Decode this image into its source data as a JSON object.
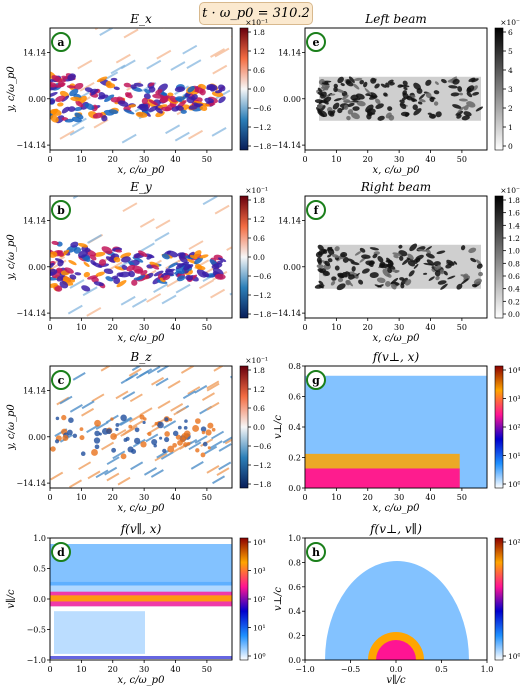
{
  "header": "t · ω_p0 = 310.2",
  "colors": {
    "diverging": [
      "#081d58",
      "#2c7fb8",
      "#f7f7f7",
      "#f46d43",
      "#67000d"
    ],
    "grey": [
      "#ffffff",
      "#000000"
    ],
    "lognorm": [
      "#ffffff",
      "#1e90ff",
      "#0000cd",
      "#ff1493",
      "#ffa500",
      "#8b0000"
    ]
  },
  "chart_data": [
    {
      "type": "heatmap",
      "letter": "a",
      "title": "E_x",
      "xlabel": "x, c/ω_p0",
      "ylabel": "y, c/ω_p0",
      "xticks": [
        0,
        10,
        20,
        30,
        40,
        50
      ],
      "yticks": [
        "14.14",
        "0.00",
        "−14.14"
      ],
      "colorbar": {
        "ticks": [
          "1.8",
          "1.2",
          "0.6",
          "0.0",
          "−0.6",
          "−1.2",
          "−1.8"
        ],
        "exponent": "×10⁻¹"
      }
    },
    {
      "type": "heatmap",
      "letter": "b",
      "title": "E_y",
      "xlabel": "x, c/ω_p0",
      "ylabel": "y, c/ω_p0",
      "xticks": [
        0,
        10,
        20,
        30,
        40,
        50
      ],
      "yticks": [
        "14.14",
        "0.00",
        "−14.14"
      ],
      "colorbar": {
        "ticks": [
          "1.8",
          "1.2",
          "0.6",
          "0.0",
          "−0.6",
          "−1.2",
          "−1.8"
        ],
        "exponent": "×10⁻¹"
      }
    },
    {
      "type": "heatmap",
      "letter": "c",
      "title": "B_z",
      "xlabel": "x, c/ω_p0",
      "ylabel": "y, c/ω_p0",
      "xticks": [
        0,
        10,
        20,
        30,
        40,
        50
      ],
      "yticks": [
        "14.14",
        "0.00",
        "−14.14"
      ],
      "colorbar": {
        "ticks": [
          "1.8",
          "1.2",
          "0.6",
          "0.0",
          "−0.6",
          "−1.2",
          "−1.8"
        ],
        "exponent": "×10⁻¹"
      }
    },
    {
      "type": "heatmap",
      "letter": "d",
      "title": "f(v∥, x)",
      "xlabel": "x, c/ω_p0",
      "ylabel": "v∥/c",
      "xticks": [
        0,
        10,
        20,
        30,
        40,
        50
      ],
      "yticks": [
        "1.0",
        "0.5",
        "0.0",
        "−0.5",
        "−1.0"
      ],
      "colorbar": {
        "ticks": [
          "10⁴",
          "10³",
          "10²",
          "10¹",
          "10⁰"
        ],
        "exponent": ""
      }
    },
    {
      "type": "heatmap",
      "letter": "e",
      "title": "Left beam",
      "xlabel": "x, c/ω_p0",
      "ylabel": "",
      "xticks": [
        0,
        10,
        20,
        30,
        40,
        50
      ],
      "yticks": [
        "14.14",
        "0.00",
        "−14.14"
      ],
      "colorbar": {
        "ticks": [
          "6",
          "5",
          "4",
          "3",
          "2",
          "1",
          "0"
        ],
        "exponent": "×10⁻²"
      }
    },
    {
      "type": "heatmap",
      "letter": "f",
      "title": "Right beam",
      "xlabel": "x, c/ω_p0",
      "ylabel": "",
      "xticks": [
        0,
        10,
        20,
        30,
        40,
        50
      ],
      "yticks": [
        "14.14",
        "0.00",
        "−14.14"
      ],
      "colorbar": {
        "ticks": [
          "1.8",
          "1.6",
          "1.4",
          "1.2",
          "1.0",
          "0.8",
          "0.6",
          "0.4",
          "0.2",
          "0.0"
        ],
        "exponent": "×10⁻²"
      }
    },
    {
      "type": "heatmap",
      "letter": "g",
      "title": "f(v⊥, x)",
      "xlabel": "x, c/ω_p0",
      "ylabel": "v⊥/c",
      "xticks": [
        0,
        10,
        20,
        30,
        40,
        50
      ],
      "yticks": [
        "0.8",
        "0.6",
        "0.4",
        "0.2",
        "0.0"
      ],
      "colorbar": {
        "ticks": [
          "10⁴",
          "10³",
          "10²",
          "10¹",
          "10⁰"
        ],
        "exponent": ""
      }
    },
    {
      "type": "heatmap",
      "letter": "h",
      "title": "f(v⊥, v∥)",
      "xlabel": "v∥/c",
      "ylabel": "v⊥/c",
      "xticks": [
        "−1.0",
        "−0.5",
        "0.0",
        "0.5",
        "1.0"
      ],
      "yticks": [
        "1.0",
        "0.8",
        "0.6",
        "0.4",
        "0.2",
        "0.0"
      ],
      "colorbar": {
        "ticks": [
          "10²",
          "10⁰"
        ],
        "exponent": ""
      }
    }
  ]
}
